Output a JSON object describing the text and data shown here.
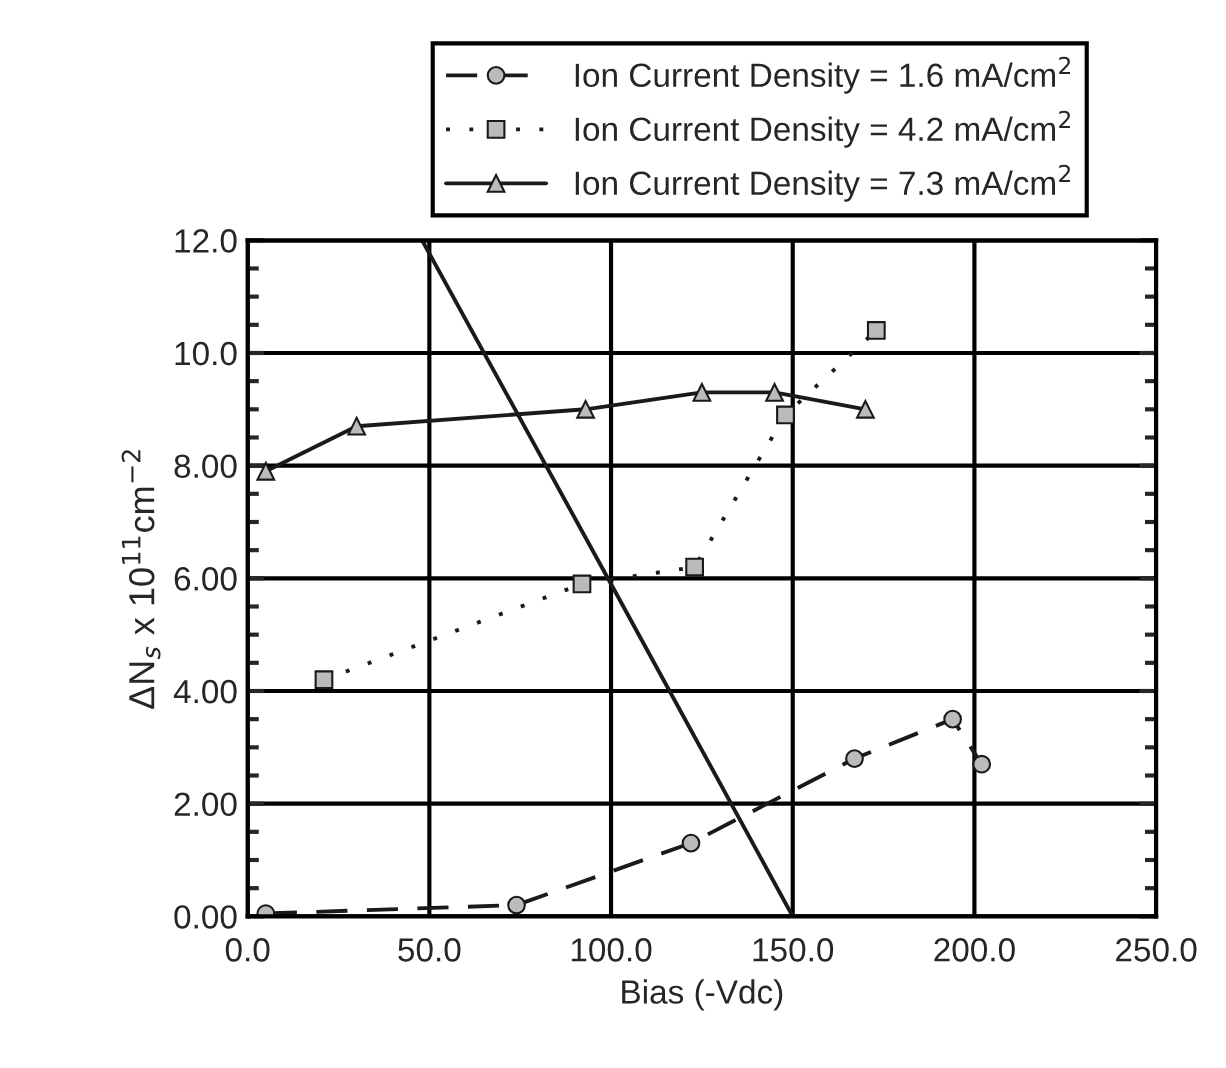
{
  "chart_data": {
    "type": "line",
    "xlabel": "Bias (-Vdc)",
    "ylabel": "ΔN$_{s}$ x 10$^{11}$cm$^{−2}$",
    "xlim": [
      0,
      250
    ],
    "ylim": [
      0,
      12
    ],
    "xticks": [
      {
        "value": 0,
        "label": "0.0"
      },
      {
        "value": 50,
        "label": "50.0"
      },
      {
        "value": 100,
        "label": "100.0"
      },
      {
        "value": 150,
        "label": "150.0"
      },
      {
        "value": 200,
        "label": "200.0"
      },
      {
        "value": 250,
        "label": "250.0"
      }
    ],
    "yticks": [
      {
        "value": 0,
        "label": "0.00"
      },
      {
        "value": 2,
        "label": "2.00"
      },
      {
        "value": 4,
        "label": "4.00"
      },
      {
        "value": 6,
        "label": "6.00"
      },
      {
        "value": 8,
        "label": "8.00"
      },
      {
        "value": 10,
        "label": "10.0"
      },
      {
        "value": 12,
        "label": "12.0"
      }
    ],
    "grid": true,
    "legend": "top right",
    "series": [
      {
        "name": "Ion Current Density = 1.6 mA/cm$^{2}$",
        "color": "#1a1a1a",
        "marker": "circle",
        "line_style": "dashed",
        "x": [
          5,
          74,
          122,
          167,
          194,
          202
        ],
        "values": [
          0.05,
          0.2,
          1.3,
          2.8,
          3.5,
          2.7
        ]
      },
      {
        "name": "Ion Current Density = 4.2 mA/cm$^{2}$",
        "color": "#1a1a1a",
        "marker": "square",
        "line_style": "dotted",
        "x": [
          21,
          92,
          123,
          148,
          173
        ],
        "values": [
          4.2,
          5.9,
          6.2,
          8.9,
          10.4
        ]
      },
      {
        "name": "Ion Current Density = 7.3 mA/cm$^{2}$",
        "color": "#1a1a1a",
        "marker": "triangle",
        "line_style": "solid",
        "x": [
          5,
          30,
          93,
          125,
          145,
          170
        ],
        "values": [
          7.9,
          8.7,
          9.0,
          9.3,
          9.3,
          9.0
        ]
      },
      {
        "color": "#1a1a1a",
        "marker": "none",
        "line_style": "solid",
        "x": [
          48,
          100,
          150
        ],
        "values": [
          12,
          5.9,
          0
        ]
      }
    ]
  }
}
